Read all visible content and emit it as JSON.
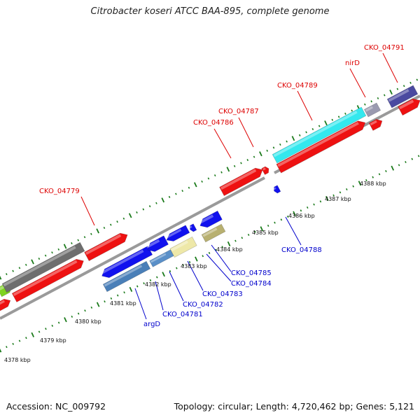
{
  "title": "Citrobacter koseri ATCC BAA-895, complete genome",
  "footer": {
    "accession": "Accession: NC_009792",
    "topology": "Topology: circular; Length: 4,720,462 bp; Genes: 5,121"
  },
  "colors": {
    "backbone": "#8c8c8c",
    "tick": "#1a7a1a",
    "forward_label": "#dd0000",
    "reverse_label": "#0000cc"
  },
  "tick_labels": [
    "4378 kbp",
    "4379 kbp",
    "4380 kbp",
    "4381 kbp",
    "4382 kbp",
    "4383 kbp",
    "4384 kbp",
    "4385 kbp",
    "4386 kbp",
    "4387 kbp",
    "4388 kbp"
  ],
  "gene_labels": {
    "forward": [
      "CKO_04779",
      "CKO_04786",
      "CKO_04787",
      "CKO_04789",
      "nirD",
      "CKO_04791"
    ],
    "reverse": [
      "argD",
      "CKO_04781",
      "CKO_04782",
      "CKO_04783",
      "CKO_04784",
      "CKO_04785",
      "CKO_04788"
    ]
  }
}
